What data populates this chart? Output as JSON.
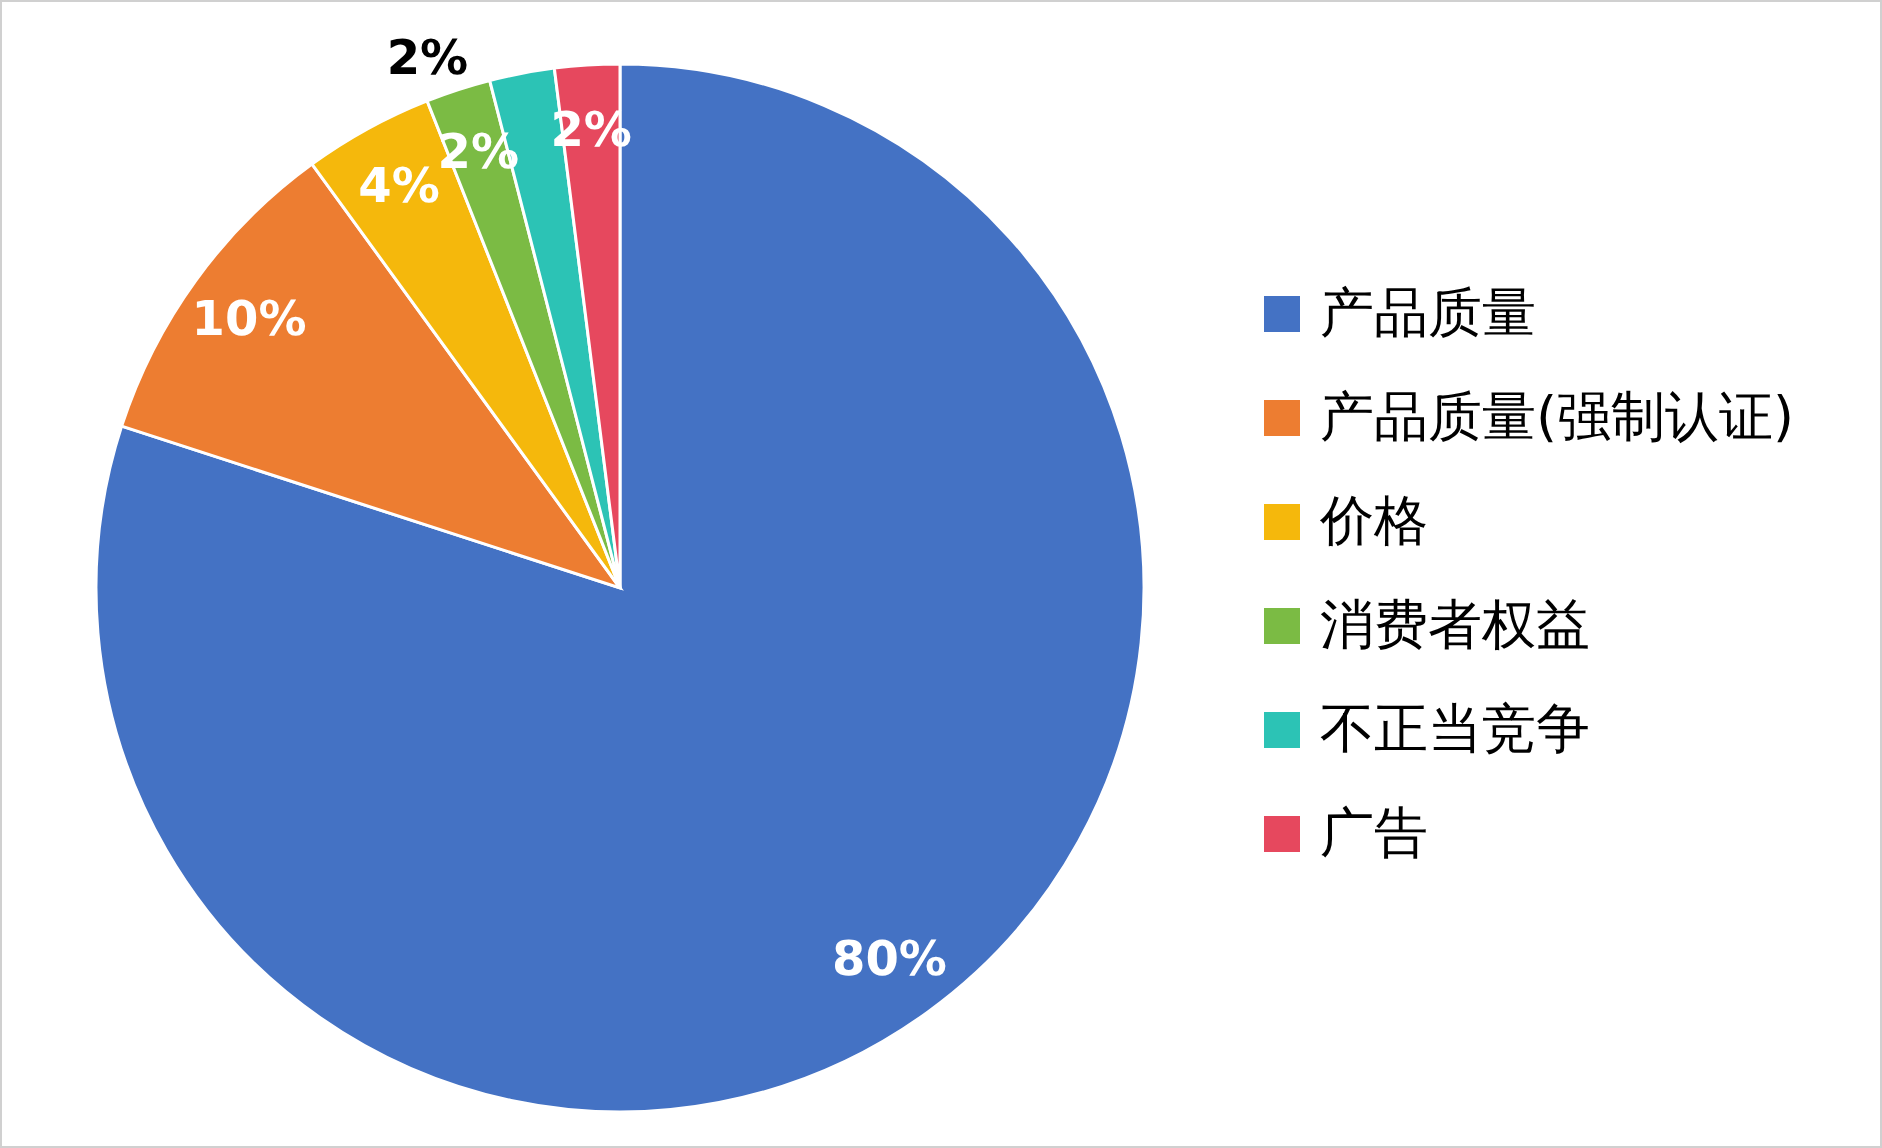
{
  "chart_data": {
    "type": "pie",
    "categories": [
      "产品质量",
      "产品质量(强制认证)",
      "价格",
      "消费者权益",
      "不正当竞争",
      "广告"
    ],
    "values": [
      80,
      10,
      4,
      2,
      2,
      2
    ],
    "colors": [
      "#4472c4",
      "#ed7d31",
      "#f5b80c",
      "#7bbb44",
      "#2cc3b5",
      "#e6485e"
    ],
    "value_labels": [
      "80%",
      "10%",
      "4%",
      "2%",
      "2%",
      "2%"
    ],
    "legend": "right"
  }
}
